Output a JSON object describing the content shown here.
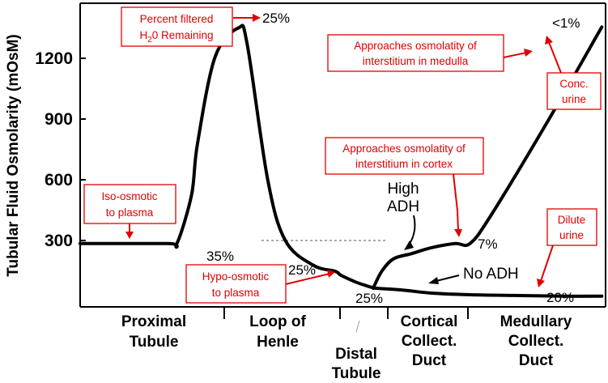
{
  "chart_data": {
    "type": "line",
    "ylabel": "Tubular Fluid Osmolarity (mOsM)",
    "yticks": [
      300,
      600,
      900,
      1200
    ],
    "ylim": [
      0,
      1450
    ],
    "segments": [
      "Proximal Tubule",
      "Loop of Henle",
      "Distal Tubule",
      "Cortical Collect. Duct",
      "Medullary Collect. Duct"
    ],
    "series": [
      {
        "x": [
          0,
          30,
          33,
          38,
          40,
          46,
          54,
          57,
          64,
          70,
          79.5,
          87,
          89,
          94,
          98,
          99.5,
          100
        ],
        "y": [
          285,
          285,
          285,
          525,
          775,
          1205,
          1350,
          1270,
          600,
          300,
          178,
          148,
          128,
          95,
          75,
          68,
          65
        ]
      },
      {
        "name": "High ADH",
        "x": [
          100,
          103,
          107,
          113,
          120,
          128,
          133,
          140,
          160,
          178
        ],
        "y": [
          65,
          150,
          210,
          235,
          265,
          285,
          285,
          420,
          900,
          1355
        ]
      },
      {
        "name": "No ADH",
        "x": [
          100,
          110,
          120,
          133,
          150,
          165,
          178
        ],
        "y": [
          65,
          55,
          40,
          32,
          28,
          25,
          25
        ]
      }
    ],
    "reference_line": {
      "y": 300,
      "style": "dashed"
    },
    "percent_labels": [
      "35%",
      "25%",
      "25%",
      "25%",
      "7%",
      "<1%",
      "20%"
    ],
    "adh_labels": [
      "High ADH",
      "No ADH"
    ],
    "annotations": [
      "Percent filtered H₂0 Remaining",
      "Iso-osmotic to plasma",
      "Hypo-osmotic to plasma",
      "Approaches osmolatity of interstitium in cortex",
      "Approaches osmolatity of interstitium in medulla",
      "Conc. urine",
      "Dilute urine"
    ]
  },
  "colors": {
    "curve": "#000000",
    "annotation": "#e00000"
  }
}
